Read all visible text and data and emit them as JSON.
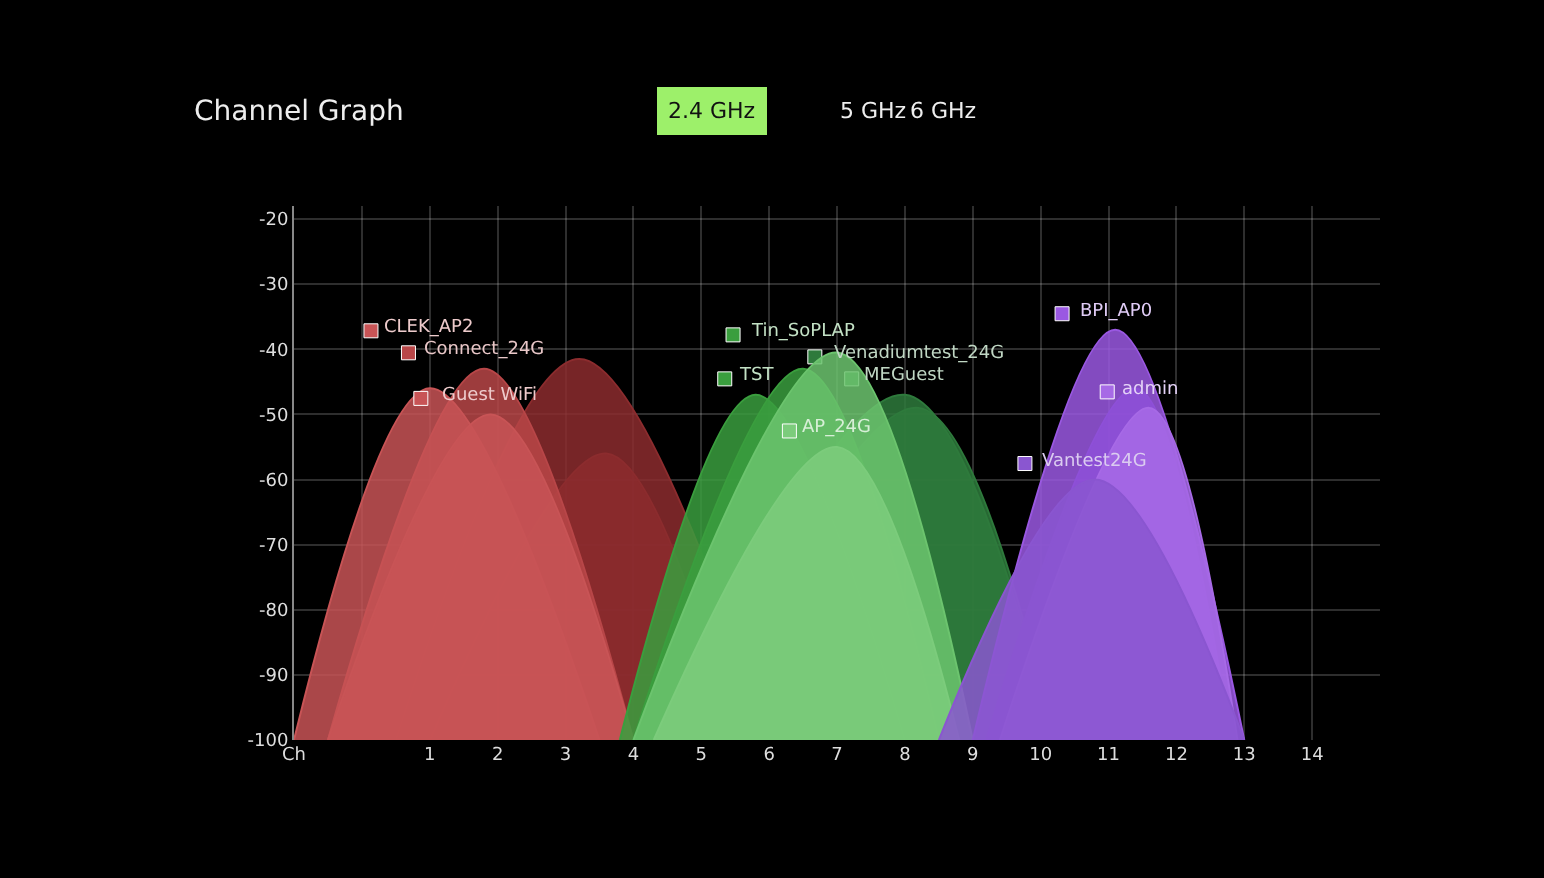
{
  "chart_data": {
    "type": "area",
    "title": "Channel Graph",
    "annotations": [
      "2.4 GHz",
      "5 GHz",
      "6 GHz"
    ],
    "xlim": [
      -1,
      15
    ],
    "xticks": [
      {
        "value": -1,
        "label": "Ch"
      },
      {
        "value": 0,
        "label": null
      },
      1,
      2,
      3,
      4,
      5,
      6,
      7,
      8,
      9,
      10,
      11,
      12,
      13,
      14
    ],
    "ylim": [
      -100,
      -18
    ],
    "yticks": [
      -20,
      -30,
      -40,
      -50,
      -60,
      -70,
      -80,
      -90,
      -100
    ],
    "grid": true,
    "legend": "top",
    "series": [
      {
        "color": "#8c2c2e",
        "x": [
          0.5,
          3.2,
          6
        ],
        "values": [
          -100,
          -41.5,
          -100
        ]
      },
      {
        "color": "#8c2c2e",
        "x": [
          1,
          3.6,
          5.5
        ],
        "values": [
          -100,
          -56,
          -100
        ]
      },
      {
        "name": "Connect_24G",
        "color": "#b84648",
        "x": [
          -0.5,
          1.8,
          4
        ],
        "values": [
          -100,
          -43,
          -100
        ]
      },
      {
        "name": "CLEK_AP2",
        "color": "#c85456",
        "x": [
          -1,
          1,
          3.5
        ],
        "values": [
          -100,
          -46,
          -100
        ]
      },
      {
        "name": "Guest WiFi",
        "color": "#c85456",
        "x": [
          -0.5,
          1.9,
          4
        ],
        "values": [
          -100,
          -50,
          -100
        ]
      },
      {
        "name": "MEGuest",
        "color": "#2e7a3c",
        "x": [
          4.5,
          8,
          10.2
        ],
        "values": [
          -100,
          -47,
          -100
        ]
      },
      {
        "name": "Venadiumtest_24G",
        "color": "#2e7a3c",
        "x": [
          4.8,
          8.2,
          10.2
        ],
        "values": [
          -100,
          -49,
          -100
        ]
      },
      {
        "name": "TST",
        "color": "#3a9e3e",
        "x": [
          3.8,
          5.8,
          8
        ],
        "values": [
          -100,
          -47,
          -100
        ]
      },
      {
        "name": "Tin_SoPLAP",
        "color": "#3a9e3e",
        "x": [
          4,
          6.5,
          8.5
        ],
        "values": [
          -100,
          -43,
          -100
        ]
      },
      {
        "color": "#6cc46e",
        "x": [
          4,
          7,
          9
        ],
        "values": [
          -100,
          -40.5,
          -100
        ]
      },
      {
        "name": "AP_24G",
        "color": "#7ccc7c",
        "x": [
          4.3,
          7,
          8.8
        ],
        "values": [
          -100,
          -55,
          -100
        ]
      },
      {
        "name": "BPI_AP0",
        "color": "#9a58e2",
        "x": [
          9,
          11.1,
          13
        ],
        "values": [
          -100,
          -37,
          -100
        ]
      },
      {
        "color": "#8e50d8",
        "x": [
          9.2,
          11.4,
          12.8
        ],
        "values": [
          -100,
          -46,
          -100
        ]
      },
      {
        "name": "admin",
        "color": "#a76ae6",
        "x": [
          9.4,
          11.6,
          12.9
        ],
        "values": [
          -100,
          -49,
          -100
        ]
      },
      {
        "name": "Vantest24G",
        "color": "#8a56d0",
        "x": [
          8.5,
          10.8,
          13
        ],
        "values": [
          -100,
          -60,
          -100
        ]
      }
    ]
  }
}
